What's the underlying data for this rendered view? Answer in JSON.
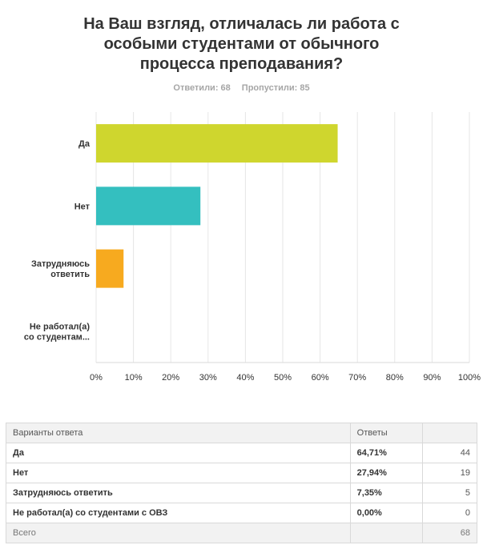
{
  "question": {
    "title_lines": [
      "На Ваш взгляд, отличалась ли работа с",
      "особыми студентами от обычного",
      "процесса преподавания?"
    ],
    "answered": "Ответили: 68",
    "skipped": "Пропустили: 85"
  },
  "chart_data": {
    "type": "bar",
    "orientation": "horizontal",
    "categories": [
      [
        "Да"
      ],
      [
        "Нет"
      ],
      [
        "Затрудняюсь",
        "ответить"
      ],
      [
        "Не работал(а)",
        "со студентам..."
      ]
    ],
    "values": [
      64.71,
      27.94,
      7.35,
      0.0
    ],
    "colors": [
      "#cfd62e",
      "#34bfbf",
      "#f7aa1f",
      "#999999"
    ],
    "xlim": [
      0,
      100
    ],
    "xticks": [
      "0%",
      "10%",
      "20%",
      "30%",
      "40%",
      "50%",
      "60%",
      "70%",
      "80%",
      "90%",
      "100%"
    ],
    "grid": true
  },
  "table": {
    "headers": [
      "Варианты ответа",
      "Ответы",
      ""
    ],
    "rows": [
      {
        "option": "Да",
        "percent": "64,71%",
        "count": "44"
      },
      {
        "option": "Нет",
        "percent": "27,94%",
        "count": "19"
      },
      {
        "option": "Затрудняюсь ответить",
        "percent": "7,35%",
        "count": "5"
      },
      {
        "option": "Не работал(а) со студентами с ОВЗ",
        "percent": "0,00%",
        "count": "0"
      }
    ],
    "total_label": "Всего",
    "total_count": "68"
  }
}
